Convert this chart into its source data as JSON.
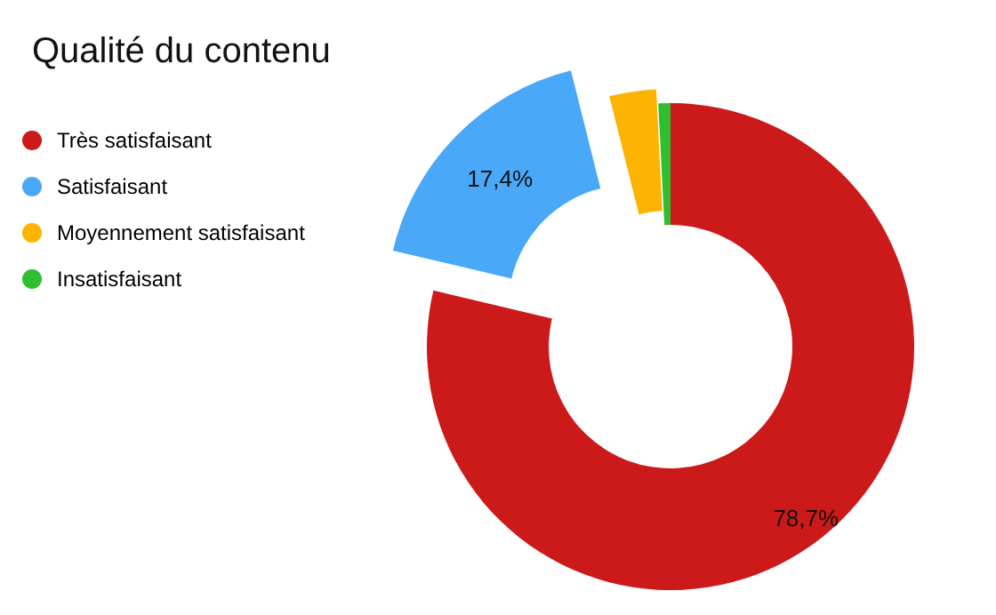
{
  "chart_data": {
    "type": "donut",
    "title": "Qualité du contenu",
    "categories": [
      "Très satisfaisant",
      "Satisfaisant",
      "Moyennement satisfaisant",
      "Insatisfaisant"
    ],
    "values": [
      78.7,
      17.4,
      3.1,
      0.8
    ],
    "colors": [
      "#cc1a1a",
      "#4aa8f8",
      "#fdb400",
      "#2fbe2f"
    ],
    "value_labels": [
      "78,7%",
      "17,4%",
      null,
      null
    ],
    "legend": "top left"
  }
}
